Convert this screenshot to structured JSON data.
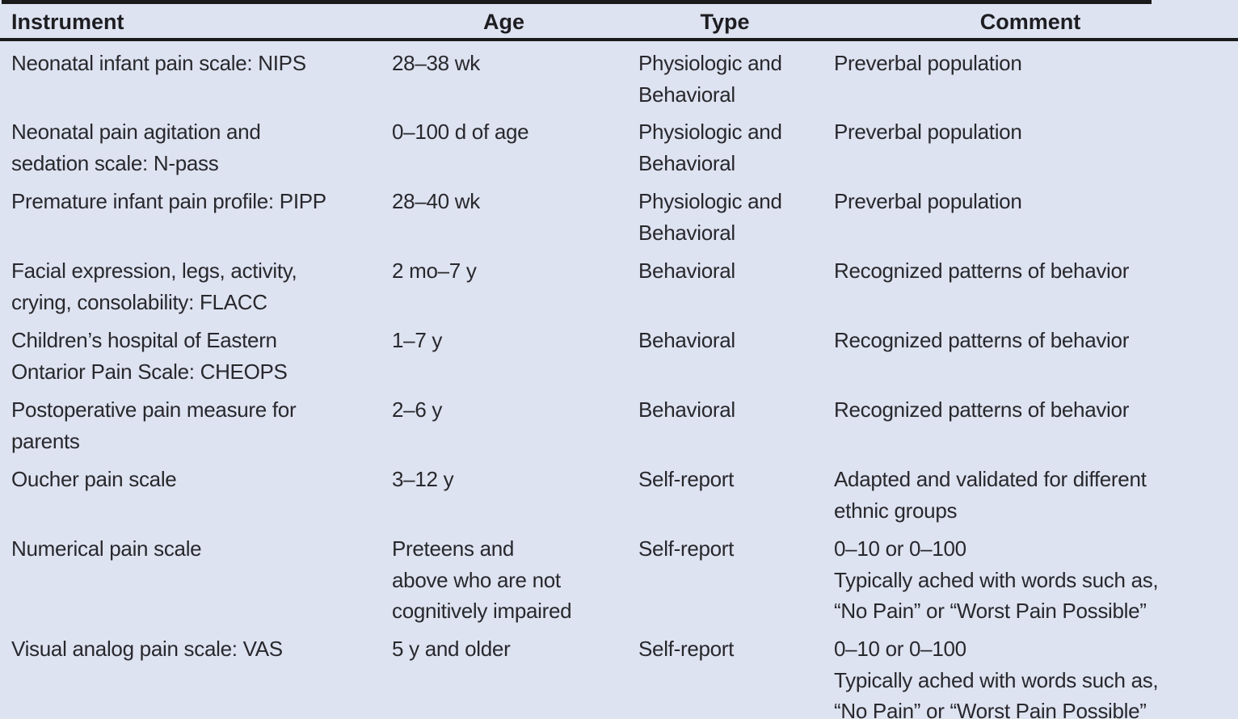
{
  "colors": {
    "background": "#dee3f1",
    "rule": "#1a1a1a",
    "text": "#28282d"
  },
  "table": {
    "columns": [
      "Instrument",
      "Age",
      "Type",
      "Comment"
    ],
    "rows": [
      {
        "instrument": "Neonatal infant pain scale: NIPS",
        "age": "28–38 wk",
        "type": "Physiologic and\nBehavioral",
        "comment": "Preverbal population"
      },
      {
        "instrument": "Neonatal pain agitation and\nsedation scale: N-pass",
        "age": "0–100 d of age",
        "type": "Physiologic and\nBehavioral",
        "comment": "Preverbal population"
      },
      {
        "instrument": "Premature infant pain profile: PIPP",
        "age": "28–40 wk",
        "type": "Physiologic and\nBehavioral",
        "comment": "Preverbal population"
      },
      {
        "instrument": "Facial expression, legs, activity,\ncrying, consolability: FLACC",
        "age": "2 mo–7 y",
        "type": "Behavioral",
        "comment": "Recognized patterns of behavior"
      },
      {
        "instrument": "Children’s hospital of Eastern\nOntarior Pain Scale: CHEOPS",
        "age": "1–7 y",
        "type": "Behavioral",
        "comment": "Recognized patterns of behavior"
      },
      {
        "instrument": "Postoperative pain measure for\nparents",
        "age": "2–6 y",
        "type": "Behavioral",
        "comment": "Recognized patterns of behavior"
      },
      {
        "instrument": "Oucher pain scale",
        "age": "3–12 y",
        "type": "Self-report",
        "comment": "Adapted and validated for different\nethnic groups"
      },
      {
        "instrument": "Numerical pain scale",
        "age": "Preteens and\nabove who are not\ncognitively impaired",
        "type": "Self-report",
        "comment": "0–10 or 0–100\nTypically ached with words such as,\n“No Pain” or “Worst Pain Possible”"
      },
      {
        "instrument": "Visual analog pain scale: VAS",
        "age": "5 y and older",
        "type": "Self-report",
        "comment": "0–10 or 0–100\nTypically ached with words such as,\n“No Pain” or “Worst Pain Possible”"
      }
    ]
  }
}
